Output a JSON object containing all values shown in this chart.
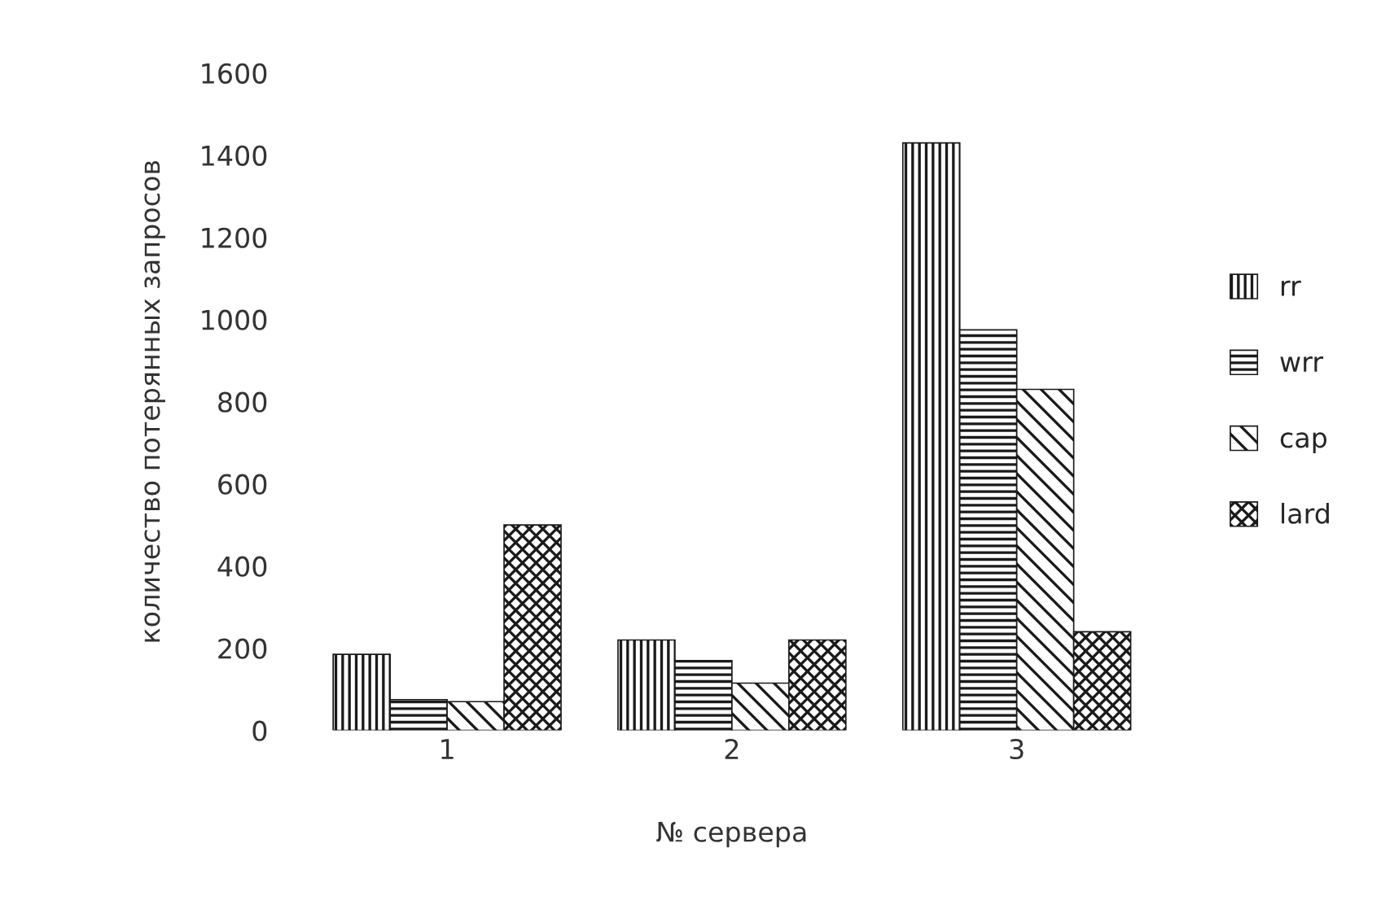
{
  "chart_data": {
    "type": "bar",
    "xlabel": "№ сервера",
    "ylabel": "количество потерянных запросов",
    "categories": [
      "1",
      "2",
      "3"
    ],
    "series": [
      {
        "name": "rr",
        "color": "#1a1a1a",
        "values": [
          185,
          220,
          1430
        ]
      },
      {
        "name": "wrr",
        "color": "#1a1a1a",
        "values": [
          75,
          170,
          975
        ]
      },
      {
        "name": "cap",
        "color": "#1a1a1a",
        "values": [
          70,
          115,
          830
        ]
      },
      {
        "name": "lard",
        "color": "#1a1a1a",
        "values": [
          500,
          220,
          240
        ]
      }
    ],
    "ylim": [
      0,
      1600
    ],
    "yticks": [
      0,
      200,
      400,
      600,
      800,
      1000,
      1200,
      1400,
      1600
    ],
    "grid": false,
    "legend": "right"
  }
}
